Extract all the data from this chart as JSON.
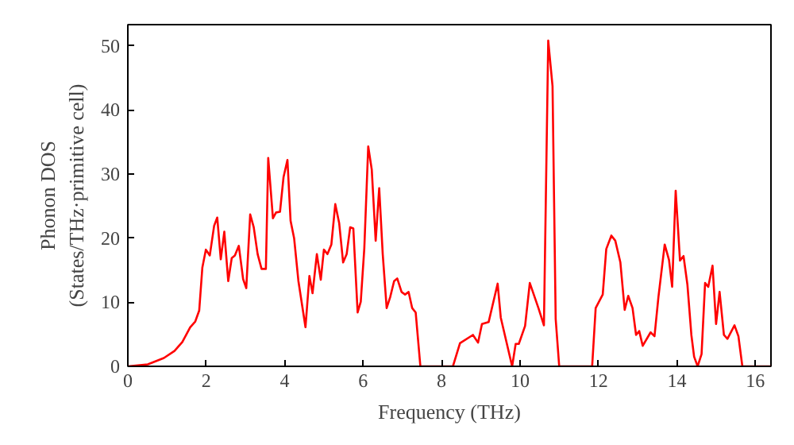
{
  "chart_data": {
    "type": "line",
    "xlabel": "Frequency (THz)",
    "ylabel": "Phonon DOS\n(States/THz·primitive cell)",
    "xlim": [
      0,
      16.4
    ],
    "ylim": [
      0,
      53.3
    ],
    "xticks": [
      0,
      2,
      4,
      6,
      8,
      10,
      12,
      14,
      16
    ],
    "yticks": [
      0,
      10,
      20,
      30,
      40,
      50
    ],
    "grid": false,
    "series": [
      {
        "color": "#ff0000",
        "x": [
          0,
          0.51,
          0.92,
          1.19,
          1.39,
          1.59,
          1.72,
          1.82,
          1.9,
          1.99,
          2.09,
          2.2,
          2.28,
          2.37,
          2.46,
          2.56,
          2.65,
          2.73,
          2.83,
          2.94,
          3.02,
          3.12,
          3.21,
          3.31,
          3.41,
          3.52,
          3.58,
          3.7,
          3.78,
          3.88,
          3.97,
          4.07,
          4.15,
          4.24,
          4.35,
          4.53,
          4.63,
          4.71,
          4.82,
          4.92,
          5.0,
          5.09,
          5.19,
          5.29,
          5.39,
          5.49,
          5.58,
          5.67,
          5.75,
          5.86,
          5.94,
          6.03,
          6.13,
          6.22,
          6.32,
          6.41,
          6.5,
          6.6,
          6.69,
          6.79,
          6.87,
          6.98,
          7.07,
          7.16,
          7.25,
          7.34,
          7.46,
          8.29,
          8.47,
          8.8,
          8.93,
          9.03,
          9.2,
          9.43,
          9.51,
          9.8,
          9.89,
          9.97,
          10.13,
          10.25,
          10.47,
          10.61,
          10.72,
          10.83,
          10.91,
          11.0,
          11.84,
          11.93,
          12.11,
          12.2,
          12.33,
          12.43,
          12.56,
          12.67,
          12.76,
          12.87,
          12.96,
          13.04,
          13.13,
          13.33,
          13.43,
          13.53,
          13.69,
          13.8,
          13.88,
          13.97,
          14.08,
          14.17,
          14.27,
          14.37,
          14.44,
          14.53,
          14.63,
          14.72,
          14.8,
          14.91,
          15.0,
          15.09,
          15.2,
          15.29,
          15.47,
          15.57,
          15.67,
          16.4
        ],
        "values": [
          0,
          0.3,
          1.3,
          2.4,
          3.8,
          6.1,
          7,
          8.7,
          15.4,
          18.2,
          17.3,
          21.9,
          23.2,
          16.7,
          21,
          13.3,
          16.9,
          17.3,
          18.8,
          13.6,
          12.2,
          23.7,
          21.7,
          17.5,
          15.2,
          15.2,
          32.5,
          23.1,
          24,
          24.1,
          29.5,
          32.2,
          22.7,
          20,
          13.3,
          6.1,
          14.1,
          11.4,
          17.5,
          13.5,
          18.2,
          17.5,
          19,
          25.3,
          22.3,
          16.2,
          17.5,
          21.7,
          21.5,
          8.4,
          10.1,
          18.4,
          34.3,
          30.7,
          19.6,
          27.8,
          17.5,
          9.1,
          10.8,
          13.3,
          13.7,
          11.6,
          11.2,
          11.6,
          9.1,
          8.4,
          0,
          0,
          3.6,
          4.9,
          3.7,
          6.6,
          6.9,
          12.9,
          7.6,
          0,
          3.5,
          3.5,
          6.3,
          13,
          9.1,
          6.4,
          50.8,
          43.7,
          7.4,
          0,
          0,
          9.1,
          11.2,
          18.3,
          20.4,
          19.6,
          16.2,
          8.8,
          11,
          9.1,
          4.9,
          5.5,
          3.2,
          5.3,
          4.7,
          10.8,
          19,
          16.6,
          12.4,
          27.4,
          16.5,
          17.2,
          12.7,
          4.9,
          1.5,
          0,
          1.9,
          13,
          12.4,
          15.7,
          6.6,
          11.6,
          4.9,
          4.3,
          6.4,
          4.7,
          0,
          0
        ]
      }
    ]
  }
}
